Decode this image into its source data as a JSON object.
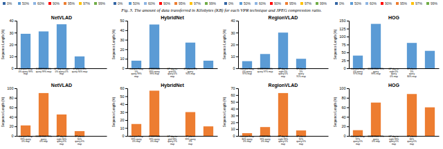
{
  "title": "Fig. 3.   The amount of data transferred in Kilobytes (KB) for each VPR technique and JPEG compression ratio.",
  "series": [
    {
      "name": "0%",
      "color": "#3465A4"
    },
    {
      "name": "50%",
      "color": "#5B9BD5"
    },
    {
      "name": "60%",
      "color": "#8DB4E2"
    },
    {
      "name": "90%",
      "color": "#FF0000"
    },
    {
      "name": "95%",
      "color": "#ED7D31"
    },
    {
      "name": "97%",
      "color": "#FFC000"
    },
    {
      "name": "99%",
      "color": "#70AD47"
    }
  ],
  "chart_data": [
    {
      "type": "bar",
      "title": "NetVLAD",
      "ylabel": "Sequence Length (%)",
      "color": "#5B9BD5",
      "categories": [
        "Campus Loop\n0% query 99%\nmap",
        "ESSEX101 0%\nquery 99% map",
        "GP day-to-night\n0% query 0%\nmap",
        "17 places 0%\nquery 90% map",
        null
      ],
      "values": [
        29,
        31,
        37,
        10,
        0
      ],
      "ylim": [
        0,
        40
      ],
      "yticks": [
        0,
        10,
        20,
        30,
        40
      ]
    },
    {
      "type": "bar",
      "title": "HybridNet",
      "ylabel": "Sequence Length (%)",
      "color": "#5B9BD5",
      "categories": [
        "Campus Loop\n0%\nquery 99%\nmap",
        "ESSEX101\n99% query\n99% map",
        "GP day-to-\ngrid 0%\nquery 0%\nmap",
        "17 places 2%\nquery\n95% map",
        null
      ],
      "values": [
        8,
        46,
        0,
        27,
        8
      ],
      "ylim": [
        0,
        50
      ],
      "yticks": [
        0,
        10,
        20,
        30,
        40,
        50
      ]
    },
    {
      "type": "bar",
      "title": "RegionVLAD",
      "ylabel": "Sequence Length (%)",
      "color": "#5B9BD5",
      "categories": [
        "Campus Loop\n0% query\n97% map",
        "ESSEX101 0%\nquery 97% map",
        "GP day-to-\nnight 0%\nquery 0%\nmap",
        "17 places\n0%\nquery\n91% map",
        null
      ],
      "values": [
        6,
        12,
        30,
        8,
        0
      ],
      "ylim": [
        0,
        40
      ],
      "yticks": [
        0,
        10,
        20,
        30,
        40
      ]
    },
    {
      "type": "bar",
      "title": "HOG",
      "ylabel": "Sequence Length (%)",
      "color": "#5B9BD5",
      "categories": [
        "Campus Loop\n0% query\n97% map",
        "ESSEX101 99%\nquery\n99% map",
        "GP day-to-\nnight 0%\nquery\n0% map",
        "17 places\n0%\nquery\n80% map",
        null
      ],
      "values": [
        40,
        140,
        0,
        80,
        55
      ],
      "ylim": [
        0,
        150
      ],
      "yticks": [
        0,
        25,
        50,
        75,
        100,
        125,
        150
      ]
    },
    {
      "type": "bar",
      "title": "NetVLAD",
      "ylabel": "Sequence Length (%)",
      "color": "#ED7D31",
      "categories": [
        "Campus Loop\n99% query\n0% map",
        "ESSEX101 99%\nquery\n0% map",
        "GP day-to-\nnight 30%\nquery 0%\nmap",
        "17 places\n90%\nquery 0%\nmap",
        null
      ],
      "values": [
        22,
        90,
        45,
        10,
        0
      ],
      "ylim": [
        0,
        100
      ],
      "yticks": [
        0,
        20,
        40,
        60,
        80,
        100
      ]
    },
    {
      "type": "bar",
      "title": "HybridNet",
      "ylabel": "Sequence Length (%)",
      "color": "#ED7D31",
      "categories": [
        "Campus Loop\n99% query\n0% map",
        "ESSEX101\n99% query\n0% map",
        "GP day-to-\ngrid 93%\nquery 2%\nmap",
        "17 places\n99% query\n2%\nmap",
        null
      ],
      "values": [
        15,
        57,
        0,
        30,
        12
      ],
      "ylim": [
        0,
        60
      ],
      "yticks": [
        0,
        10,
        20,
        30,
        40,
        50,
        60
      ]
    },
    {
      "type": "bar",
      "title": "RegionVLAD",
      "ylabel": "Sequence Length (%)",
      "color": "#ED7D31",
      "categories": [
        "Campus Loop\n80% query\n0% map",
        "ESSEX101\n99% query\n0% map",
        "GP day-to-\nnight 99%\nquery 0%\nmap",
        "17 places\n92%\nquery 0%\nmap",
        null
      ],
      "values": [
        4,
        13,
        63,
        8,
        0
      ],
      "ylim": [
        0,
        70
      ],
      "yticks": [
        0,
        10,
        20,
        30,
        40,
        50,
        60,
        70
      ]
    },
    {
      "type": "bar",
      "title": "HOG",
      "ylabel": "Sequence Length (%)",
      "color": "#ED7D31",
      "categories": [
        "Campus Loop\n97%\nquery 0%\nmap",
        "ESSEX101 99%\nquery\n0% map",
        "GP day-to-\nnight 99%\nquery 0%\nmap",
        "17 places\n84%\nquery 0%\nmap",
        null
      ],
      "values": [
        12,
        70,
        0,
        88,
        60
      ],
      "ylim": [
        0,
        100
      ],
      "yticks": [
        0,
        20,
        40,
        60,
        80,
        100
      ]
    }
  ]
}
